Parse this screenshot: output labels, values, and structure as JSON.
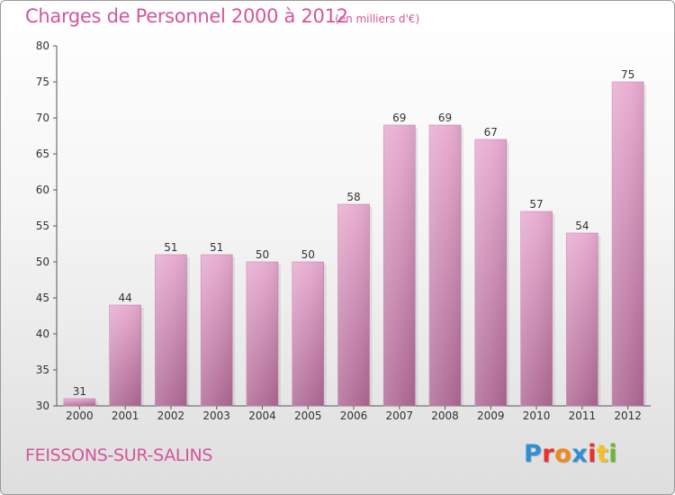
{
  "colors": {
    "title": "#d4559c",
    "bar_top": "#e8abd0",
    "bar_bottom": "#ad6893",
    "axis": "#555555",
    "grid": "#c8c8c8"
  },
  "header": {
    "title": "Charges de Personnel 2000 à 2012",
    "subtitle": "(en milliers d'€)"
  },
  "footer": {
    "commune": "FEISSONS-SUR-SALINS",
    "brand_letters": [
      {
        "char": "P",
        "color": "#2f8fd6"
      },
      {
        "char": "r",
        "color": "#e8322d"
      },
      {
        "char": "o",
        "color": "#f08a1c"
      },
      {
        "char": "x",
        "color": "#2f8fd6"
      },
      {
        "char": "i",
        "color": "#e8322d"
      },
      {
        "char": "t",
        "color": "#f5c21a"
      },
      {
        "char": "i",
        "color": "#6cb52d"
      }
    ]
  },
  "chart_data": {
    "type": "bar",
    "title": "Charges de Personnel 2000 à 2012",
    "subtitle": "(en milliers d'€)",
    "categories": [
      "2000",
      "2001",
      "2002",
      "2003",
      "2004",
      "2005",
      "2006",
      "2007",
      "2008",
      "2009",
      "2010",
      "2011",
      "2012"
    ],
    "values": [
      31,
      44,
      51,
      51,
      50,
      50,
      58,
      69,
      69,
      67,
      57,
      54,
      75
    ],
    "ylim": [
      30,
      80
    ],
    "yticks": [
      30,
      35,
      40,
      45,
      50,
      55,
      60,
      65,
      70,
      75,
      80
    ],
    "grid": false,
    "data_labels": true
  }
}
